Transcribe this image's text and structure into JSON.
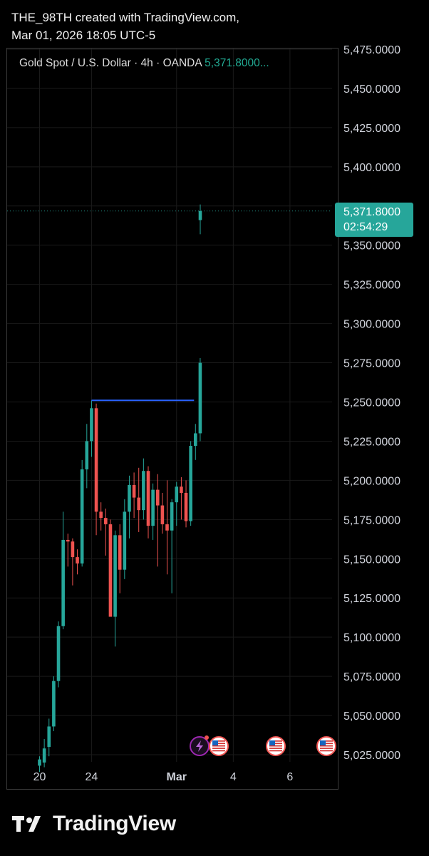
{
  "header": {
    "line1": "THE_98TH created with TradingView.com,",
    "line2": "Mar 01, 2026 18:05 UTC-5"
  },
  "legend": {
    "symbol": "Gold Spot / U.S. Dollar · 4h · OANDA",
    "price": "5,371.8000..."
  },
  "last_price": {
    "value": "5,371.8000",
    "countdown": "02:54:29",
    "color": "#26a69a"
  },
  "colors": {
    "up": "#26a69a",
    "down": "#ef5350",
    "hline": "#2962ff",
    "grid": "#1a1a1a",
    "axis_text": "#d1d4dc"
  },
  "events": [
    {
      "icon": "lightning-event-icon",
      "x_label": "Mar",
      "color": "#9c27b0"
    },
    {
      "icon": "us-flag-event-icon",
      "x_label": "Mar",
      "color": "#ef5350"
    },
    {
      "icon": "us-flag-event-icon",
      "x_label": "4",
      "color": "#ef5350"
    },
    {
      "icon": "us-flag-event-icon",
      "x_label": "6",
      "color": "#ef5350"
    }
  ],
  "brand": "TradingView",
  "chart_data": {
    "type": "candlestick",
    "timeframe": "4h",
    "ylim": [
      5017.5,
      5477
    ],
    "y_ticks": [
      5025,
      5050,
      5075,
      5100,
      5125,
      5150,
      5175,
      5200,
      5225,
      5250,
      5275,
      5300,
      5325,
      5350,
      5375,
      5400,
      5425,
      5450,
      5475
    ],
    "x_ticks": [
      {
        "label": "20",
        "index": 0
      },
      {
        "label": "24",
        "index": 11
      },
      {
        "label": "Mar",
        "index": 29
      },
      {
        "label": "4",
        "index": 41
      },
      {
        "label": "6",
        "index": 53
      }
    ],
    "candles": [
      {
        "o": 5018,
        "h": 5024,
        "l": 5014,
        "c": 5022
      },
      {
        "o": 5020,
        "h": 5035,
        "l": 5017,
        "c": 5029
      },
      {
        "o": 5030,
        "h": 5048,
        "l": 5024,
        "c": 5043
      },
      {
        "o": 5043,
        "h": 5075,
        "l": 5040,
        "c": 5072
      },
      {
        "o": 5072,
        "h": 5110,
        "l": 5068,
        "c": 5107
      },
      {
        "o": 5107,
        "h": 5180,
        "l": 5105,
        "c": 5162
      },
      {
        "o": 5162,
        "h": 5166,
        "l": 5145,
        "c": 5161
      },
      {
        "o": 5161,
        "h": 5163,
        "l": 5133,
        "c": 5151
      },
      {
        "o": 5151,
        "h": 5156,
        "l": 5140,
        "c": 5147
      },
      {
        "o": 5147,
        "h": 5213,
        "l": 5145,
        "c": 5207
      },
      {
        "o": 5207,
        "h": 5236,
        "l": 5195,
        "c": 5225
      },
      {
        "o": 5225,
        "h": 5251,
        "l": 5215,
        "c": 5246
      },
      {
        "o": 5246,
        "h": 5249,
        "l": 5165,
        "c": 5180
      },
      {
        "o": 5180,
        "h": 5186,
        "l": 5168,
        "c": 5176
      },
      {
        "o": 5176,
        "h": 5182,
        "l": 5152,
        "c": 5172
      },
      {
        "o": 5172,
        "h": 5175,
        "l": 5115,
        "c": 5113
      },
      {
        "o": 5113,
        "h": 5168,
        "l": 5094,
        "c": 5165
      },
      {
        "o": 5165,
        "h": 5172,
        "l": 5128,
        "c": 5143
      },
      {
        "o": 5143,
        "h": 5188,
        "l": 5137,
        "c": 5180
      },
      {
        "o": 5180,
        "h": 5203,
        "l": 5163,
        "c": 5197
      },
      {
        "o": 5197,
        "h": 5205,
        "l": 5176,
        "c": 5189
      },
      {
        "o": 5189,
        "h": 5208,
        "l": 5167,
        "c": 5181
      },
      {
        "o": 5181,
        "h": 5214,
        "l": 5175,
        "c": 5206
      },
      {
        "o": 5206,
        "h": 5209,
        "l": 5163,
        "c": 5171
      },
      {
        "o": 5171,
        "h": 5198,
        "l": 5162,
        "c": 5194
      },
      {
        "o": 5194,
        "h": 5204,
        "l": 5145,
        "c": 5184
      },
      {
        "o": 5184,
        "h": 5192,
        "l": 5166,
        "c": 5172
      },
      {
        "o": 5172,
        "h": 5200,
        "l": 5140,
        "c": 5168
      },
      {
        "o": 5168,
        "h": 5188,
        "l": 5128,
        "c": 5186
      },
      {
        "o": 5186,
        "h": 5199,
        "l": 5171,
        "c": 5196
      },
      {
        "o": 5196,
        "h": 5202,
        "l": 5175,
        "c": 5192
      },
      {
        "o": 5192,
        "h": 5200,
        "l": 5170,
        "c": 5174
      },
      {
        "o": 5174,
        "h": 5225,
        "l": 5171,
        "c": 5222
      },
      {
        "o": 5222,
        "h": 5236,
        "l": 5213,
        "c": 5230
      },
      {
        "o": 5230,
        "h": 5278,
        "l": 5225,
        "c": 5275
      }
    ],
    "last_candle": {
      "x_label": "Mar",
      "o": 5366,
      "h": 5376,
      "l": 5357,
      "c": 5371.8
    },
    "horizontal_line": {
      "y": 5251,
      "from_index": 11,
      "to_index": 33
    },
    "last_price_line": 5371.8
  }
}
